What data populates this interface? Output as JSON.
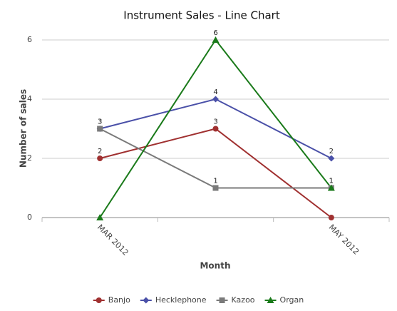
{
  "chart_data": {
    "type": "line",
    "title": "Instrument Sales - Line Chart",
    "x_label": "Month",
    "y_label": "Number of sales",
    "categories": [
      "MAR 2012",
      null,
      "MAY 2012"
    ],
    "series": [
      {
        "name": "Banjo",
        "color": "#a03030",
        "marker": "circle",
        "values": [
          2,
          3,
          0
        ]
      },
      {
        "name": "Hecklephone",
        "color": "#4a50a8",
        "marker": "diamond",
        "values": [
          3,
          4,
          2
        ]
      },
      {
        "name": "Kazoo",
        "color": "#7a7a7a",
        "marker": "square",
        "values": [
          3,
          1,
          1
        ]
      },
      {
        "name": "Organ",
        "color": "#1a7a1a",
        "marker": "triangle",
        "values": [
          0,
          6,
          1
        ]
      }
    ],
    "ylim": [
      0,
      6
    ],
    "yticks": [
      0,
      2,
      4,
      6
    ],
    "grid": true
  }
}
